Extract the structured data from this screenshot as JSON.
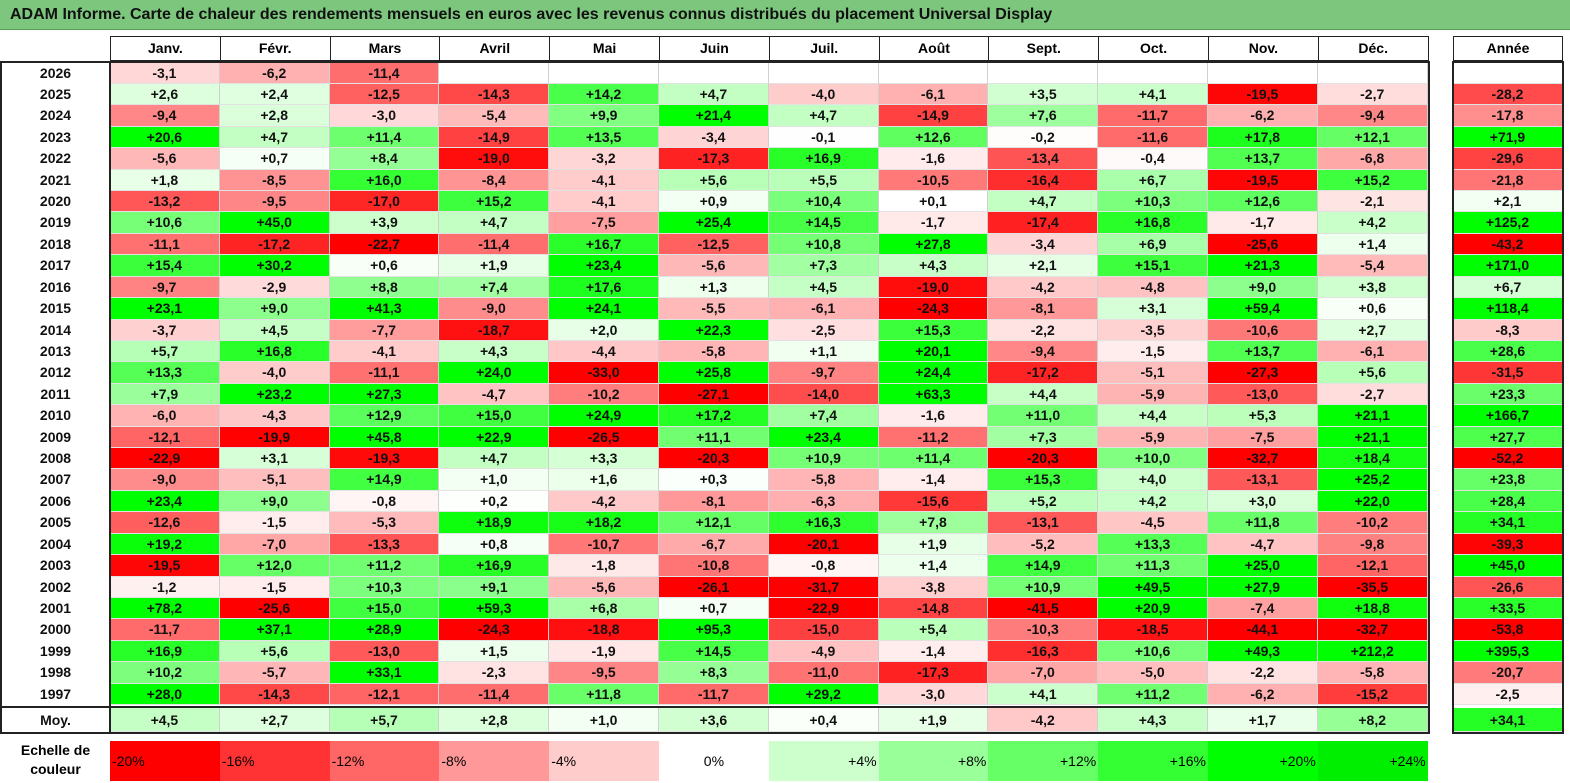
{
  "title": "ADAM Informe. Carte de chaleur des rendements mensuels en euros avec les revenus connus distribués du placement Universal Display",
  "chart_data": {
    "type": "heatmap",
    "title": "ADAM Informe. Carte de chaleur des rendements mensuels en euros avec les revenus connus distribués du placement Universal Display",
    "months": [
      "Janv.",
      "Févr.",
      "Mars",
      "Avril",
      "Mai",
      "Juin",
      "Juil.",
      "Août",
      "Sept.",
      "Oct.",
      "Nov.",
      "Déc."
    ],
    "year_header": "Année",
    "rows": [
      {
        "year": "2026",
        "values": [
          "-3,1",
          "-6,2",
          "-11,4",
          "",
          "",
          "",
          "",
          "",
          "",
          "",
          "",
          ""
        ],
        "annual": ""
      },
      {
        "year": "2025",
        "values": [
          "+2,6",
          "+2,4",
          "-12,5",
          "-14,3",
          "+14,2",
          "+4,7",
          "-4,0",
          "-6,1",
          "+3,5",
          "+4,1",
          "-19,5",
          "-2,7"
        ],
        "annual": "-28,2"
      },
      {
        "year": "2024",
        "values": [
          "-9,4",
          "+2,8",
          "-3,0",
          "-5,4",
          "+9,9",
          "+21,4",
          "+4,7",
          "-14,9",
          "+7,6",
          "-11,7",
          "-6,2",
          "-9,4"
        ],
        "annual": "-17,8"
      },
      {
        "year": "2023",
        "values": [
          "+20,6",
          "+4,7",
          "+11,4",
          "-14,9",
          "+13,5",
          "-3,4",
          "-0,1",
          "+12,6",
          "-0,2",
          "-11,6",
          "+17,8",
          "+12,1"
        ],
        "annual": "+71,9"
      },
      {
        "year": "2022",
        "values": [
          "-5,6",
          "+0,7",
          "+8,4",
          "-19,0",
          "-3,2",
          "-17,3",
          "+16,9",
          "-1,6",
          "-13,4",
          "-0,4",
          "+13,7",
          "-6,8"
        ],
        "annual": "-29,6"
      },
      {
        "year": "2021",
        "values": [
          "+1,8",
          "-8,5",
          "+16,0",
          "-8,4",
          "-4,1",
          "+5,6",
          "+5,5",
          "-10,5",
          "-16,4",
          "+6,7",
          "-19,5",
          "+15,2"
        ],
        "annual": "-21,8"
      },
      {
        "year": "2020",
        "values": [
          "-13,2",
          "-9,5",
          "-17,0",
          "+15,2",
          "-4,1",
          "+0,9",
          "+10,4",
          "+0,1",
          "+4,7",
          "+10,3",
          "+12,6",
          "-2,1"
        ],
        "annual": "+2,1"
      },
      {
        "year": "2019",
        "values": [
          "+10,6",
          "+45,0",
          "+3,9",
          "+4,7",
          "-7,5",
          "+25,4",
          "+14,5",
          "-1,7",
          "-17,4",
          "+16,8",
          "-1,7",
          "+4,2"
        ],
        "annual": "+125,2"
      },
      {
        "year": "2018",
        "values": [
          "-11,1",
          "-17,2",
          "-22,7",
          "-11,4",
          "+16,7",
          "-12,5",
          "+10,8",
          "+27,8",
          "-3,4",
          "+6,9",
          "-25,6",
          "+1,4"
        ],
        "annual": "-43,2"
      },
      {
        "year": "2017",
        "values": [
          "+15,4",
          "+30,2",
          "+0,6",
          "+1,9",
          "+23,4",
          "-5,6",
          "+7,3",
          "+4,3",
          "+2,1",
          "+15,1",
          "+21,3",
          "-5,4"
        ],
        "annual": "+171,0"
      },
      {
        "year": "2016",
        "values": [
          "-9,7",
          "-2,9",
          "+8,8",
          "+7,4",
          "+17,6",
          "+1,3",
          "+4,5",
          "-19,0",
          "-4,2",
          "-4,8",
          "+9,0",
          "+3,8"
        ],
        "annual": "+6,7"
      },
      {
        "year": "2015",
        "values": [
          "+23,1",
          "+9,0",
          "+41,3",
          "-9,0",
          "+24,1",
          "-5,5",
          "-6,1",
          "-24,3",
          "-8,1",
          "+3,1",
          "+59,4",
          "+0,6"
        ],
        "annual": "+118,4"
      },
      {
        "year": "2014",
        "values": [
          "-3,7",
          "+4,5",
          "-7,7",
          "-18,7",
          "+2,0",
          "+22,3",
          "-2,5",
          "+15,3",
          "-2,2",
          "-3,5",
          "-10,6",
          "+2,7"
        ],
        "annual": "-8,3"
      },
      {
        "year": "2013",
        "values": [
          "+5,7",
          "+16,8",
          "-4,1",
          "+4,3",
          "-4,4",
          "-5,8",
          "+1,1",
          "+20,1",
          "-9,4",
          "-1,5",
          "+13,7",
          "-6,1"
        ],
        "annual": "+28,6"
      },
      {
        "year": "2012",
        "values": [
          "+13,3",
          "-4,0",
          "-11,1",
          "+24,0",
          "-33,0",
          "+25,8",
          "-9,7",
          "+24,4",
          "-17,2",
          "-5,1",
          "-27,3",
          "+5,6"
        ],
        "annual": "-31,5"
      },
      {
        "year": "2011",
        "values": [
          "+7,9",
          "+23,2",
          "+27,3",
          "-4,7",
          "-10,2",
          "-27,1",
          "-14,0",
          "+63,3",
          "+4,4",
          "-5,9",
          "-13,0",
          "-2,7"
        ],
        "annual": "+23,3"
      },
      {
        "year": "2010",
        "values": [
          "-6,0",
          "-4,3",
          "+12,9",
          "+15,0",
          "+24,9",
          "+17,2",
          "+7,4",
          "-1,6",
          "+11,0",
          "+4,4",
          "+5,3",
          "+21,1"
        ],
        "annual": "+166,7"
      },
      {
        "year": "2009",
        "values": [
          "-12,1",
          "-19,9",
          "+45,8",
          "+22,9",
          "-26,5",
          "+11,1",
          "+23,4",
          "-11,2",
          "+7,3",
          "-5,9",
          "-7,5",
          "+21,1"
        ],
        "annual": "+27,7"
      },
      {
        "year": "2008",
        "values": [
          "-22,9",
          "+3,1",
          "-19,3",
          "+4,7",
          "+3,3",
          "-20,3",
          "+10,9",
          "+11,4",
          "-20,3",
          "+10,0",
          "-32,7",
          "+18,4"
        ],
        "annual": "-52,2"
      },
      {
        "year": "2007",
        "values": [
          "-9,0",
          "-5,1",
          "+14,9",
          "+1,0",
          "+1,6",
          "+0,3",
          "-5,8",
          "-1,4",
          "+15,3",
          "+4,0",
          "-13,1",
          "+25,2"
        ],
        "annual": "+23,8"
      },
      {
        "year": "2006",
        "values": [
          "+23,4",
          "+9,0",
          "-0,8",
          "+0,2",
          "-4,2",
          "-8,1",
          "-6,3",
          "-15,6",
          "+5,2",
          "+4,2",
          "+3,0",
          "+22,0"
        ],
        "annual": "+28,4"
      },
      {
        "year": "2005",
        "values": [
          "-12,6",
          "-1,5",
          "-5,3",
          "+18,9",
          "+18,2",
          "+12,1",
          "+16,3",
          "+7,8",
          "-13,1",
          "-4,5",
          "+11,8",
          "-10,2"
        ],
        "annual": "+34,1"
      },
      {
        "year": "2004",
        "values": [
          "+19,2",
          "-7,0",
          "-13,3",
          "+0,8",
          "-10,7",
          "-6,7",
          "-20,1",
          "+1,9",
          "-5,2",
          "+13,3",
          "-4,7",
          "-9,8"
        ],
        "annual": "-39,3"
      },
      {
        "year": "2003",
        "values": [
          "-19,5",
          "+12,0",
          "+11,2",
          "+16,9",
          "-1,8",
          "-10,8",
          "-0,8",
          "+1,4",
          "+14,9",
          "+11,3",
          "+25,0",
          "-12,1"
        ],
        "annual": "+45,0"
      },
      {
        "year": "2002",
        "values": [
          "-1,2",
          "-1,5",
          "+10,3",
          "+9,1",
          "-5,6",
          "-26,1",
          "-31,7",
          "-3,8",
          "+10,9",
          "+49,5",
          "+27,9",
          "-35,5"
        ],
        "annual": "-26,6"
      },
      {
        "year": "2001",
        "values": [
          "+78,2",
          "-25,6",
          "+15,0",
          "+59,3",
          "+6,8",
          "+0,7",
          "-22,9",
          "-14,8",
          "-41,5",
          "+20,9",
          "-7,4",
          "+18,8"
        ],
        "annual": "+33,5"
      },
      {
        "year": "2000",
        "values": [
          "-11,7",
          "+37,1",
          "+28,9",
          "-24,3",
          "-18,8",
          "+95,3",
          "-15,0",
          "+5,4",
          "-10,3",
          "-18,5",
          "-44,1",
          "-32,7"
        ],
        "annual": "-53,8"
      },
      {
        "year": "1999",
        "values": [
          "+16,9",
          "+5,6",
          "-13,0",
          "+1,5",
          "-1,9",
          "+14,5",
          "-4,9",
          "-1,4",
          "-16,3",
          "+10,6",
          "+49,3",
          "+212,2"
        ],
        "annual": "+395,3"
      },
      {
        "year": "1998",
        "values": [
          "+10,2",
          "-5,7",
          "+33,1",
          "-2,3",
          "-9,5",
          "+8,3",
          "-11,0",
          "-17,3",
          "-7,0",
          "-5,0",
          "-2,2",
          "-5,8"
        ],
        "annual": "-20,7"
      },
      {
        "year": "1997",
        "values": [
          "+28,0",
          "-14,3",
          "-12,1",
          "-11,4",
          "+11,8",
          "-11,7",
          "+29,2",
          "-3,0",
          "+4,1",
          "+11,2",
          "-6,2",
          "-15,2"
        ],
        "annual": "-2,5"
      }
    ],
    "average": {
      "label": "Moy.",
      "values": [
        "+4,5",
        "+2,7",
        "+5,7",
        "+2,8",
        "+1,0",
        "+3,6",
        "+0,4",
        "+1,9",
        "-4,2",
        "+4,3",
        "+1,7",
        "+8,2"
      ],
      "annual": "+34,1"
    },
    "legend": {
      "label": "Echelle de couleur",
      "stops": [
        {
          "text": "-20%",
          "value": -20,
          "color": "#ff0000",
          "align": "left"
        },
        {
          "text": "-16%",
          "value": -16,
          "color": "#ff3333",
          "align": "left"
        },
        {
          "text": "-12%",
          "value": -12,
          "color": "#ff6666",
          "align": "left"
        },
        {
          "text": "-8%",
          "value": -8,
          "color": "#ff9999",
          "align": "left"
        },
        {
          "text": "-4%",
          "value": -4,
          "color": "#ffcccc",
          "align": "left"
        },
        {
          "text": "0%",
          "value": 0,
          "color": "#ffffff",
          "align": "center"
        },
        {
          "text": "+4%",
          "value": 4,
          "color": "#ccffcc",
          "align": "right"
        },
        {
          "text": "+8%",
          "value": 8,
          "color": "#99ff99",
          "align": "right"
        },
        {
          "text": "+12%",
          "value": 12,
          "color": "#66ff66",
          "align": "right"
        },
        {
          "text": "+16%",
          "value": 16,
          "color": "#33ff33",
          "align": "right"
        },
        {
          "text": "+20%",
          "value": 20,
          "color": "#00ff00",
          "align": "right"
        },
        {
          "text": "+24%",
          "value": 24,
          "color": "#00ee00",
          "align": "right"
        }
      ]
    },
    "colors": {
      "negative_max": "#ff0000",
      "positive_max": "#00ff00",
      "neutral": "#ffffff",
      "title_bar": "#7dc67d"
    }
  }
}
